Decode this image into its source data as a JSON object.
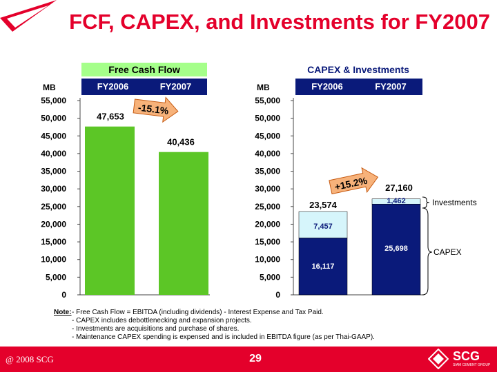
{
  "title": "FCF, CAPEX, and Investments for FY2007",
  "colors": {
    "title_red": "#e4002b",
    "fcf_green": "#5cc626",
    "capex_navy": "#0a1a7a",
    "invest_cyan": "#d6f5fb",
    "header_bg": "#a5ff8a"
  },
  "chart_data": [
    {
      "type": "bar",
      "title": "Free Cash Flow",
      "ylabel": "MB",
      "categories": [
        "FY2006",
        "FY2007"
      ],
      "values": [
        47653,
        40436
      ],
      "value_labels": [
        "47,653",
        "40,436"
      ],
      "ylim": [
        0,
        55000
      ],
      "yticks": [
        "0",
        "5,000",
        "10,000",
        "15,000",
        "20,000",
        "25,000",
        "30,000",
        "35,000",
        "40,000",
        "45,000",
        "50,000",
        "55,000"
      ],
      "annotation": "-15.1%"
    },
    {
      "type": "bar",
      "stacked": true,
      "title": "CAPEX & Investments",
      "ylabel": "MB",
      "categories": [
        "FY2006",
        "FY2007"
      ],
      "series": [
        {
          "name": "CAPEX",
          "values": [
            16117,
            25698
          ],
          "labels": [
            "16,117",
            "25,698"
          ]
        },
        {
          "name": "Investments",
          "values": [
            7457,
            1462
          ],
          "labels": [
            "7,457",
            "1,462"
          ]
        }
      ],
      "totals": [
        23574,
        27160
      ],
      "total_labels": [
        "23,574",
        "27,160"
      ],
      "ylim": [
        0,
        55000
      ],
      "yticks": [
        "0",
        "5,000",
        "10,000",
        "15,000",
        "20,000",
        "25,000",
        "30,000",
        "35,000",
        "40,000",
        "45,000",
        "50,000",
        "55,000"
      ],
      "annotation": "+15.2%"
    }
  ],
  "notes": {
    "label": "Note:",
    "items": [
      "- Free Cash Flow = EBITDA (including dividends) - Interest Expense and Tax Paid.",
      "- CAPEX includes debottlenecking and expansion projects.",
      "- Investments are acquisitions and purchase of shares.",
      "- Maintenance CAPEX spending is expensed and is included in EBITDA figure (as per Thai-GAAP)."
    ]
  },
  "footer": {
    "copyright": "@ 2008 SCG",
    "page": "29",
    "logo_text": "SCG",
    "logo_subtext": "SIAM CEMENT GROUP"
  }
}
